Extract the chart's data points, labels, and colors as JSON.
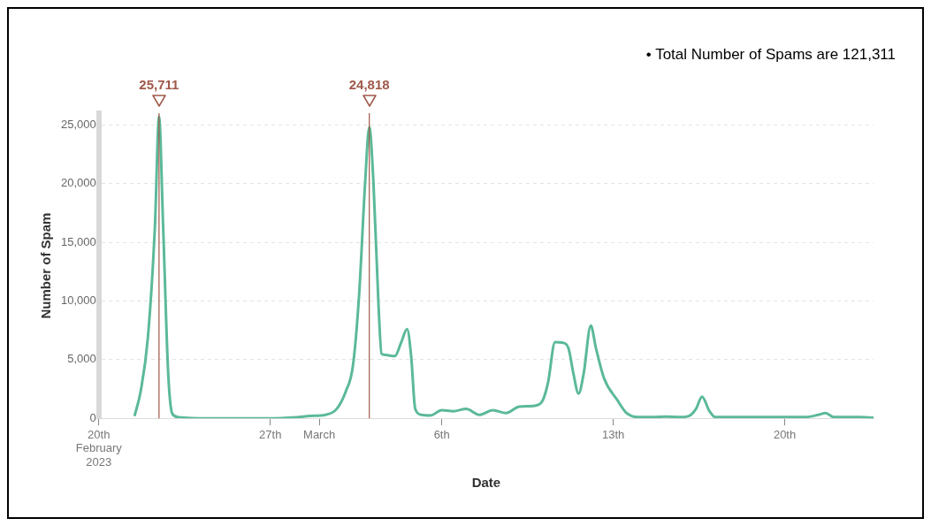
{
  "chart_data": {
    "type": "line",
    "xlabel": "Date",
    "ylabel": "Number of Spam",
    "x": [
      "2023-02-21T11:00",
      "2023-02-21T17:00",
      "2023-02-22T00:00",
      "2023-02-22T07:00",
      "2023-02-22T11:00",
      "2023-02-22T15:00",
      "2023-02-22T20:00",
      "2023-02-23T00:00",
      "2023-02-23T06:00",
      "2023-02-24T11:00",
      "2023-02-27T00:00",
      "2023-02-28T02:00",
      "2023-02-28T15:00",
      "2023-03-01T06:00",
      "2023-03-01T17:00",
      "2023-03-02T02:00",
      "2023-03-02T09:00",
      "2023-03-02T15:00",
      "2023-03-02T21:00",
      "2023-03-03T01:00",
      "2023-03-03T05:00",
      "2023-03-03T10:00",
      "2023-03-03T13:00",
      "2023-03-03T17:00",
      "2023-03-04T02:00",
      "2023-03-04T08:00",
      "2023-03-04T14:00",
      "2023-03-04T18:00",
      "2023-03-04T22:00",
      "2023-03-05T04:00",
      "2023-03-05T13:00",
      "2023-03-06T00:00",
      "2023-03-06T11:00",
      "2023-03-07T00:00",
      "2023-03-07T13:00",
      "2023-03-08T02:00",
      "2023-03-08T15:00",
      "2023-03-09T04:00",
      "2023-03-09T17:00",
      "2023-03-10T02:00",
      "2023-03-10T08:00",
      "2023-03-10T15:00",
      "2023-03-10T22:00",
      "2023-03-11T04:00",
      "2023-03-11T09:00",
      "2023-03-11T14:00",
      "2023-03-11T19:00",
      "2023-03-12T02:00",
      "2023-03-12T07:00",
      "2023-03-12T15:00",
      "2023-03-13T04:00",
      "2023-03-13T13:00",
      "2023-03-14T00:00",
      "2023-03-14T15:00",
      "2023-03-15T04:00",
      "2023-03-15T17:00",
      "2023-03-16T02:00",
      "2023-03-16T09:00",
      "2023-03-16T15:00",
      "2023-03-16T22:00",
      "2023-03-17T04:00",
      "2023-03-19T00:00",
      "2023-03-20T20:00",
      "2023-03-21T09:00",
      "2023-03-21T16:00",
      "2023-03-22T00:00",
      "2023-03-23T00:00",
      "2023-03-23T15:00"
    ],
    "series": [
      {
        "color": "#5bb99a",
        "values": [
          200,
          2300,
          6800,
          16400,
          25711,
          16400,
          3800,
          400,
          100,
          0,
          0,
          100,
          200,
          300,
          800,
          2300,
          4500,
          10500,
          20200,
          24818,
          20200,
          9700,
          5500,
          5400,
          5300,
          6400,
          7600,
          5300,
          800,
          300,
          250,
          700,
          600,
          800,
          300,
          700,
          450,
          1000,
          1050,
          1400,
          3000,
          6500,
          6450,
          6000,
          3800,
          2100,
          3800,
          7900,
          6000,
          3400,
          1550,
          450,
          100,
          100,
          150,
          100,
          200,
          800,
          1850,
          650,
          100,
          100,
          100,
          300,
          450,
          100,
          100,
          50
        ]
      }
    ],
    "xlim": [
      "2023-02-20",
      "2023-03-23T15:00"
    ],
    "xticks": [
      {
        "value": "2023-02-20",
        "label": "20th\nFebruary\n2023"
      },
      {
        "value": "2023-02-27",
        "label": "27th"
      },
      {
        "value": "2023-03-01",
        "label": "March"
      },
      {
        "value": "2023-03-06",
        "label": "6th"
      },
      {
        "value": "2023-03-13",
        "label": "13th"
      },
      {
        "value": "2023-03-20",
        "label": "20th"
      }
    ],
    "ylim": [
      0,
      26000
    ],
    "yticks": [
      {
        "value": 0,
        "label": "0"
      },
      {
        "value": 5000,
        "label": "5,000"
      },
      {
        "value": 10000,
        "label": "10,000"
      },
      {
        "value": 15000,
        "label": "15,000"
      },
      {
        "value": 20000,
        "label": "20,000"
      },
      {
        "value": 25000,
        "label": "25,000"
      }
    ],
    "ref_lines": [
      {
        "axis": "x",
        "value": "2023-02-22T11:00",
        "label": "25,711",
        "color": "#a0584a"
      },
      {
        "axis": "x",
        "value": "2023-03-03T01:00",
        "label": "24,818",
        "color": "#a0584a"
      }
    ],
    "grid": "y",
    "marker": "none",
    "line_style": "solid",
    "legend": false,
    "annotations": [
      "• Total Number of Spams are 121,311"
    ]
  }
}
